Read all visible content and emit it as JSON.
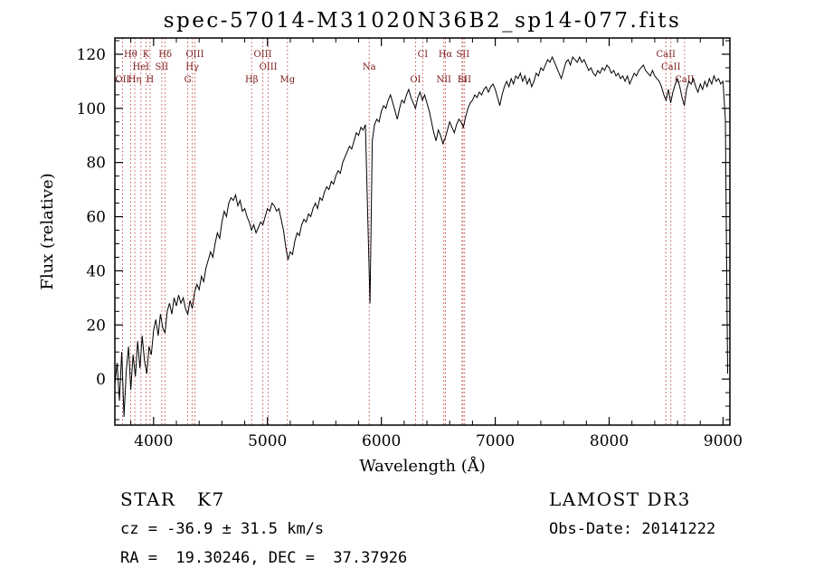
{
  "title": "spec-57014-M31020N36B2_sp14-077.fits",
  "chart_data": {
    "type": "line",
    "title": "spec-57014-M31020N36B2_sp14-077.fits",
    "xlabel": "Wavelength (Å)",
    "ylabel": "Flux (relative)",
    "xlim": [
      3660,
      9060
    ],
    "ylim": [
      -17,
      126
    ],
    "x_ticks": [
      4000,
      5000,
      6000,
      7000,
      8000,
      9000
    ],
    "y_ticks": [
      0,
      20,
      40,
      60,
      80,
      100,
      120
    ],
    "x_minor_step": 200,
    "y_minor_step": 5,
    "grid": false,
    "background": "#ffffff",
    "series": [
      {
        "name": "spectrum",
        "color": "#000000",
        "wl_start": 3660,
        "wl_step": 20,
        "flux": [
          -2,
          6,
          -8,
          10,
          -14,
          3,
          12,
          -4,
          9,
          1,
          14,
          4,
          16,
          7,
          2,
          12,
          9,
          18,
          22,
          16,
          24,
          19,
          17,
          25,
          28,
          24,
          30,
          27,
          31,
          28,
          30,
          26,
          24,
          29,
          26,
          32,
          35,
          33,
          38,
          36,
          41,
          44,
          47,
          45,
          50,
          54,
          52,
          58,
          62,
          60,
          65,
          67,
          66,
          68,
          64,
          66,
          62,
          63,
          60,
          58,
          55,
          57,
          54,
          56,
          58,
          57,
          60,
          63,
          62,
          65,
          64,
          62,
          63,
          59,
          55,
          49,
          44,
          47,
          46,
          51,
          54,
          53,
          57,
          59,
          58,
          61,
          60,
          63,
          65,
          63,
          67,
          66,
          69,
          71,
          70,
          73,
          72,
          75,
          77,
          76,
          80,
          82,
          84,
          86,
          85,
          88,
          91,
          90,
          93,
          92,
          94,
          60,
          28,
          88,
          94,
          96,
          95,
          99,
          101,
          100,
          103,
          105,
          102,
          99,
          96,
          100,
          103,
          102,
          105,
          107,
          104,
          102,
          100,
          104,
          106,
          103,
          105,
          102,
          99,
          95,
          91,
          88,
          92,
          90,
          87,
          89,
          92,
          95,
          93,
          91,
          94,
          96,
          95,
          93,
          97,
          100,
          102,
          103,
          105,
          104,
          106,
          105,
          107,
          108,
          106,
          108,
          109,
          107,
          104,
          101,
          105,
          108,
          110,
          108,
          111,
          109,
          112,
          111,
          113,
          110,
          112,
          109,
          111,
          108,
          110,
          113,
          112,
          115,
          114,
          116,
          118,
          117,
          119,
          117,
          115,
          113,
          111,
          114,
          117,
          118,
          116,
          119,
          118,
          117,
          119,
          117,
          118,
          116,
          114,
          115,
          113,
          112,
          114,
          113,
          115,
          114,
          116,
          115,
          113,
          114,
          112,
          113,
          111,
          112,
          110,
          112,
          109,
          111,
          113,
          112,
          114,
          115,
          116,
          114,
          113,
          112,
          114,
          112,
          111,
          110,
          108,
          105,
          103,
          107,
          102,
          106,
          109,
          111,
          108,
          104,
          101,
          107,
          110,
          109,
          111,
          108,
          106,
          109,
          107,
          110,
          108,
          111,
          109,
          112,
          110,
          111,
          109,
          110,
          96,
          2
        ]
      }
    ],
    "line_markers": {
      "line_color": "#c43a3a",
      "label_color": "#7a1a1a",
      "items": [
        {
          "wl": 3727,
          "label": "OII",
          "row": 2
        },
        {
          "wl": 3798,
          "label": "Hθ",
          "row": 0
        },
        {
          "wl": 3835,
          "label": "Hη",
          "row": 2
        },
        {
          "wl": 3889,
          "label": "HeI",
          "row": 1
        },
        {
          "wl": 3934,
          "label": "K",
          "row": 0
        },
        {
          "wl": 3969,
          "label": "H",
          "row": 2
        },
        {
          "wl": 4072,
          "label": "SII",
          "row": 1
        },
        {
          "wl": 4102,
          "label": "Hδ",
          "row": 0
        },
        {
          "wl": 4300,
          "label": "G",
          "row": 2
        },
        {
          "wl": 4340,
          "label": "Hγ",
          "row": 1
        },
        {
          "wl": 4363,
          "label": "OIII",
          "row": 0
        },
        {
          "wl": 4861,
          "label": "Hβ",
          "row": 2
        },
        {
          "wl": 4959,
          "label": "OIII",
          "row": 0
        },
        {
          "wl": 5007,
          "label": "OIII",
          "row": 1
        },
        {
          "wl": 5175,
          "label": "Mg",
          "row": 2
        },
        {
          "wl": 5893,
          "label": "Na",
          "row": 1
        },
        {
          "wl": 6300,
          "label": "OI",
          "row": 2
        },
        {
          "wl": 6363,
          "label": "CI",
          "row": 0
        },
        {
          "wl": 6548,
          "label": "NII",
          "row": 2
        },
        {
          "wl": 6563,
          "label": "Hα",
          "row": 0
        },
        {
          "wl": 6708,
          "label": "Li",
          "row": 2
        },
        {
          "wl": 6716,
          "label": "SII",
          "row": 0
        },
        {
          "wl": 6731,
          "label": "SII",
          "row": 2
        },
        {
          "wl": 8498,
          "label": "CaII",
          "row": 0
        },
        {
          "wl": 8542,
          "label": "CaII",
          "row": 1
        },
        {
          "wl": 8662,
          "label": "CaII",
          "row": 2
        }
      ]
    }
  },
  "annotations": {
    "class_label": "STAR   K7",
    "survey": "LAMOST DR3",
    "cz": "cz = -36.9 ± 31.5 km/s",
    "obs_date": "Obs-Date: 20141222",
    "radec": "RA =  19.30246, DEC =  37.37926"
  }
}
